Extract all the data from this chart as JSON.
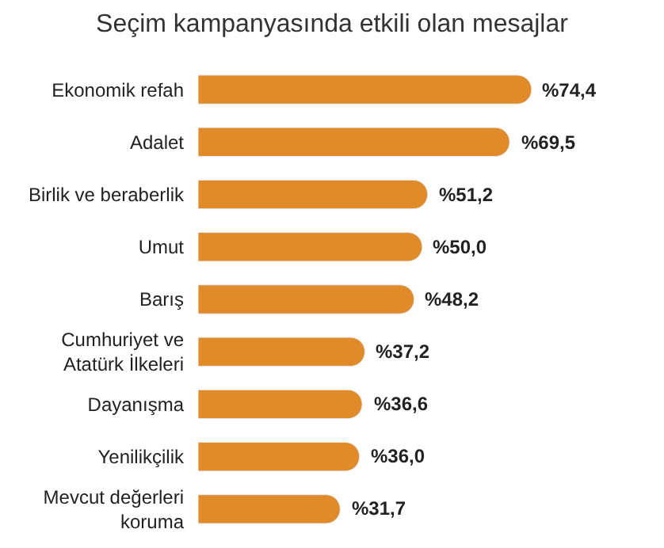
{
  "chart_data": {
    "type": "bar",
    "orientation": "horizontal",
    "title": "Seçim kampanyasında etkili olan mesajlar",
    "categories": [
      "Ekonomik refah",
      "Adalet",
      "Birlik ve beraberlik",
      "Umut",
      "Barış",
      "Cumhuriyet ve Atatürk İlkeleri",
      "Dayanışma",
      "Yenilikçilik",
      "Mevcut değerleri koruma"
    ],
    "values": [
      74.4,
      69.5,
      51.2,
      50.0,
      48.2,
      37.2,
      36.6,
      36.0,
      31.7
    ],
    "value_labels": [
      "%74,4",
      "%69,5",
      "%51,2",
      "%50,0",
      "%48,2",
      "%37,2",
      "%36,6",
      "%36,0",
      "%31,7"
    ],
    "color": "#e08a2a"
  }
}
